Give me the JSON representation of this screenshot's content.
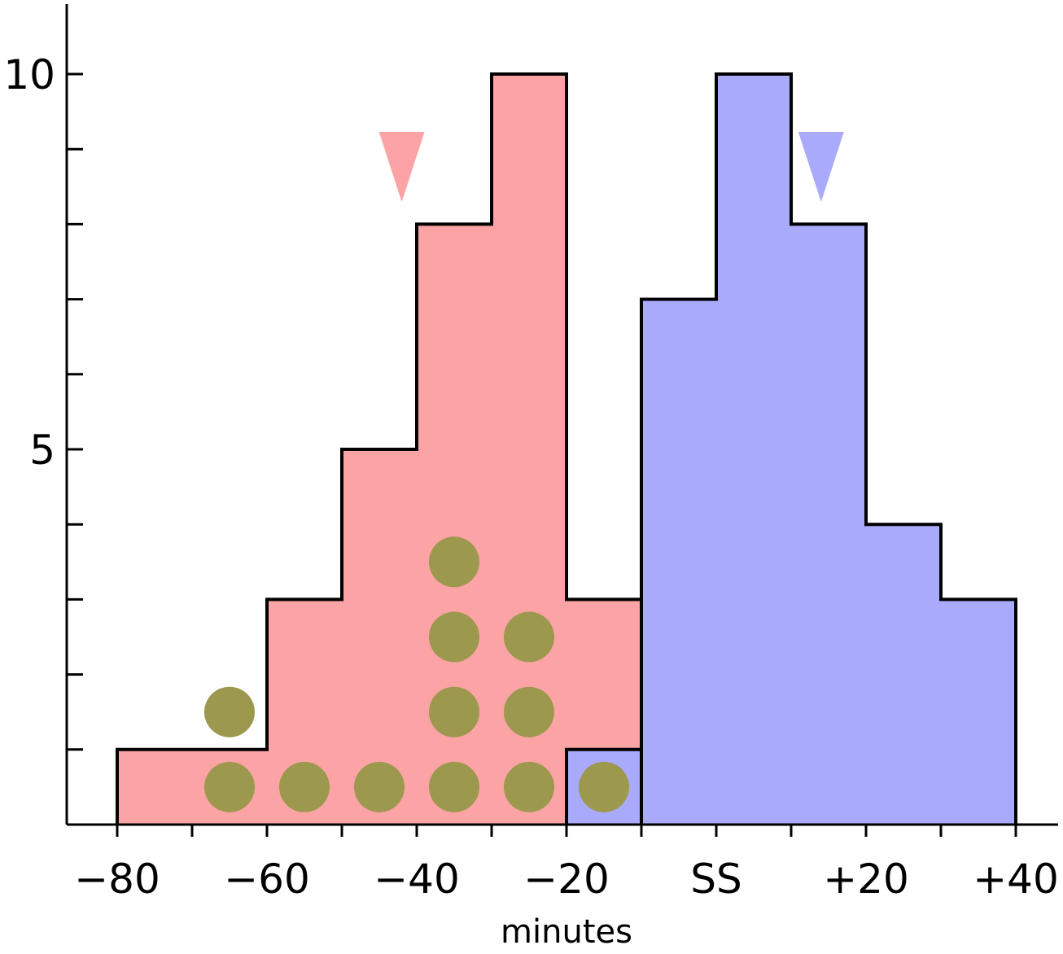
{
  "chart_data": {
    "type": "histogram",
    "xlabel": "minutes",
    "ylabel": "",
    "xlim": [
      -87,
      45
    ],
    "ylim": [
      0,
      11
    ],
    "x_tick_labels": [
      {
        "value": -80,
        "label": "−80"
      },
      {
        "value": -60,
        "label": "−60"
      },
      {
        "value": -40,
        "label": "−40"
      },
      {
        "value": -20,
        "label": "−20"
      },
      {
        "value": 0,
        "label": "SS"
      },
      {
        "value": 20,
        "label": "+20"
      },
      {
        "value": 40,
        "label": "+40"
      }
    ],
    "x_minor_ticks": [
      -70,
      -50,
      -30,
      -10,
      10,
      30
    ],
    "y_tick_labels": [
      {
        "value": 5,
        "label": "5"
      },
      {
        "value": 10,
        "label": "10"
      }
    ],
    "y_minor_ticks": [
      1,
      2,
      3,
      4,
      6,
      7,
      8,
      9
    ],
    "series": [
      {
        "color": "#fca3a5",
        "bins": [
          {
            "x0": -80,
            "x1": -60,
            "count": 1
          },
          {
            "x0": -60,
            "x1": -50,
            "count": 3
          },
          {
            "x0": -50,
            "x1": -40,
            "count": 5
          },
          {
            "x0": -40,
            "x1": -30,
            "count": 8
          },
          {
            "x0": -30,
            "x1": -20,
            "count": 10
          },
          {
            "x0": -20,
            "x1": -10,
            "count": 3
          }
        ],
        "marker_x": -42
      },
      {
        "color": "#aaaafd",
        "bins": [
          {
            "x0": -20,
            "x1": -10,
            "count": 1
          },
          {
            "x0": -10,
            "x1": 0,
            "count": 7
          },
          {
            "x0": 0,
            "x1": 10,
            "count": 10
          },
          {
            "x0": 10,
            "x1": 20,
            "count": 8
          },
          {
            "x0": 20,
            "x1": 30,
            "count": 4
          },
          {
            "x0": 30,
            "x1": 40,
            "count": 3
          }
        ],
        "marker_x": 14
      }
    ],
    "dotted_line_x": -10,
    "dots": {
      "color": "#9c984d",
      "points": [
        {
          "x": -65,
          "y": 0.5
        },
        {
          "x": -65,
          "y": 1.5
        },
        {
          "x": -55,
          "y": 0.5
        },
        {
          "x": -45,
          "y": 0.5
        },
        {
          "x": -35,
          "y": 0.5
        },
        {
          "x": -35,
          "y": 1.5
        },
        {
          "x": -35,
          "y": 2.5
        },
        {
          "x": -35,
          "y": 3.5
        },
        {
          "x": -25,
          "y": 0.5
        },
        {
          "x": -25,
          "y": 1.5
        },
        {
          "x": -25,
          "y": 2.5
        },
        {
          "x": -15,
          "y": 0.5
        }
      ]
    }
  }
}
